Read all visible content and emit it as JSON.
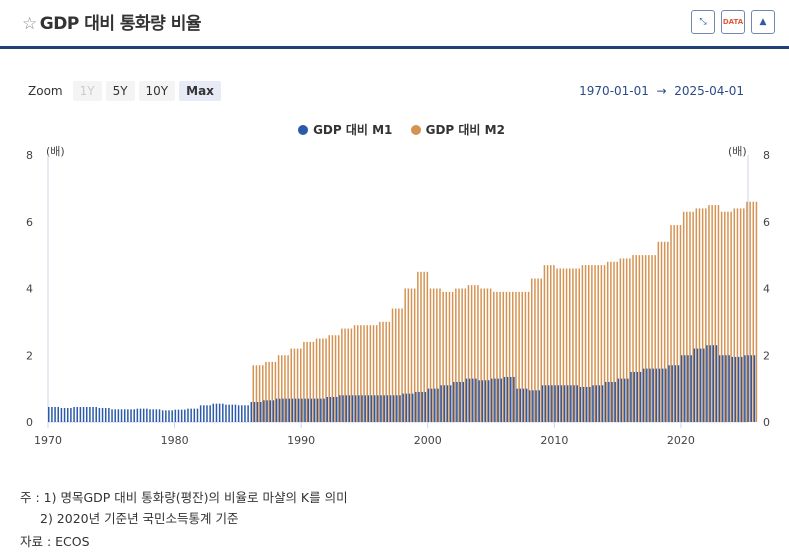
{
  "header": {
    "title": "GDP 대비 통화량 비율",
    "icons": [
      "star-icon",
      "collapse-icon",
      "data-download-icon",
      "image-download-icon"
    ],
    "data_icon_label": "DATA"
  },
  "zoom": {
    "label": "Zoom",
    "buttons": [
      "1Y",
      "5Y",
      "10Y",
      "Max"
    ],
    "active": "Max"
  },
  "range": {
    "from": "1970-01-01",
    "arrow": "→",
    "to": "2025-04-01"
  },
  "notes": {
    "line1": "주 : 1) 명목GDP 대비 통화량(평잔)의 비율로 마샬의 K를 의미",
    "line2": "2) 2020년 기준년 국민소득통계 기준",
    "source": "자료 : ECOS"
  },
  "chart_data": {
    "type": "bar",
    "title": "GDP 대비 통화량 비율",
    "ylabel_left": "(배)",
    "ylabel_right": "(배)",
    "ylim": [
      0,
      8
    ],
    "yticks": [
      "0",
      "2",
      "4",
      "6",
      "8"
    ],
    "xlim": [
      1970,
      2025.3
    ],
    "xticks": [
      "1970",
      "1980",
      "1990",
      "2000",
      "2010",
      "2020"
    ],
    "legend_position": "top-center",
    "x": [
      1970,
      1971,
      1972,
      1973,
      1974,
      1975,
      1976,
      1977,
      1978,
      1979,
      1980,
      1981,
      1982,
      1983,
      1984,
      1985,
      1986,
      1987,
      1988,
      1989,
      1990,
      1991,
      1992,
      1993,
      1994,
      1995,
      1996,
      1997,
      1998,
      1999,
      2000,
      2001,
      2002,
      2003,
      2004,
      2005,
      2006,
      2007,
      2008,
      2009,
      2010,
      2011,
      2012,
      2013,
      2014,
      2015,
      2016,
      2017,
      2018,
      2019,
      2020,
      2021,
      2022,
      2023,
      2024,
      2025
    ],
    "series": [
      {
        "name": "GDP 대비 M1",
        "color": "#2b5aa8",
        "values": [
          0.45,
          0.42,
          0.45,
          0.45,
          0.42,
          0.38,
          0.38,
          0.4,
          0.38,
          0.35,
          0.37,
          0.4,
          0.5,
          0.55,
          0.52,
          0.5,
          0.6,
          0.65,
          0.7,
          0.7,
          0.7,
          0.7,
          0.75,
          0.8,
          0.8,
          0.8,
          0.8,
          0.8,
          0.85,
          0.9,
          1.0,
          1.1,
          1.2,
          1.3,
          1.25,
          1.3,
          1.35,
          1.0,
          0.95,
          1.1,
          1.1,
          1.1,
          1.05,
          1.1,
          1.2,
          1.3,
          1.5,
          1.6,
          1.6,
          1.7,
          2.0,
          2.2,
          2.3,
          2.0,
          1.95,
          2.0
        ]
      },
      {
        "name": "GDP 대비 M2",
        "color": "#d59353",
        "values": [
          null,
          null,
          null,
          null,
          null,
          null,
          null,
          null,
          null,
          null,
          null,
          null,
          null,
          null,
          null,
          null,
          1.7,
          1.8,
          2.0,
          2.2,
          2.4,
          2.5,
          2.6,
          2.8,
          2.9,
          2.9,
          3.0,
          3.4,
          4.0,
          4.5,
          4.0,
          3.9,
          4.0,
          4.1,
          4.0,
          3.9,
          3.9,
          3.9,
          4.3,
          4.7,
          4.6,
          4.6,
          4.7,
          4.7,
          4.8,
          4.9,
          5.0,
          5.0,
          5.4,
          5.9,
          6.3,
          6.4,
          6.5,
          6.3,
          6.4,
          6.6
        ]
      }
    ]
  }
}
